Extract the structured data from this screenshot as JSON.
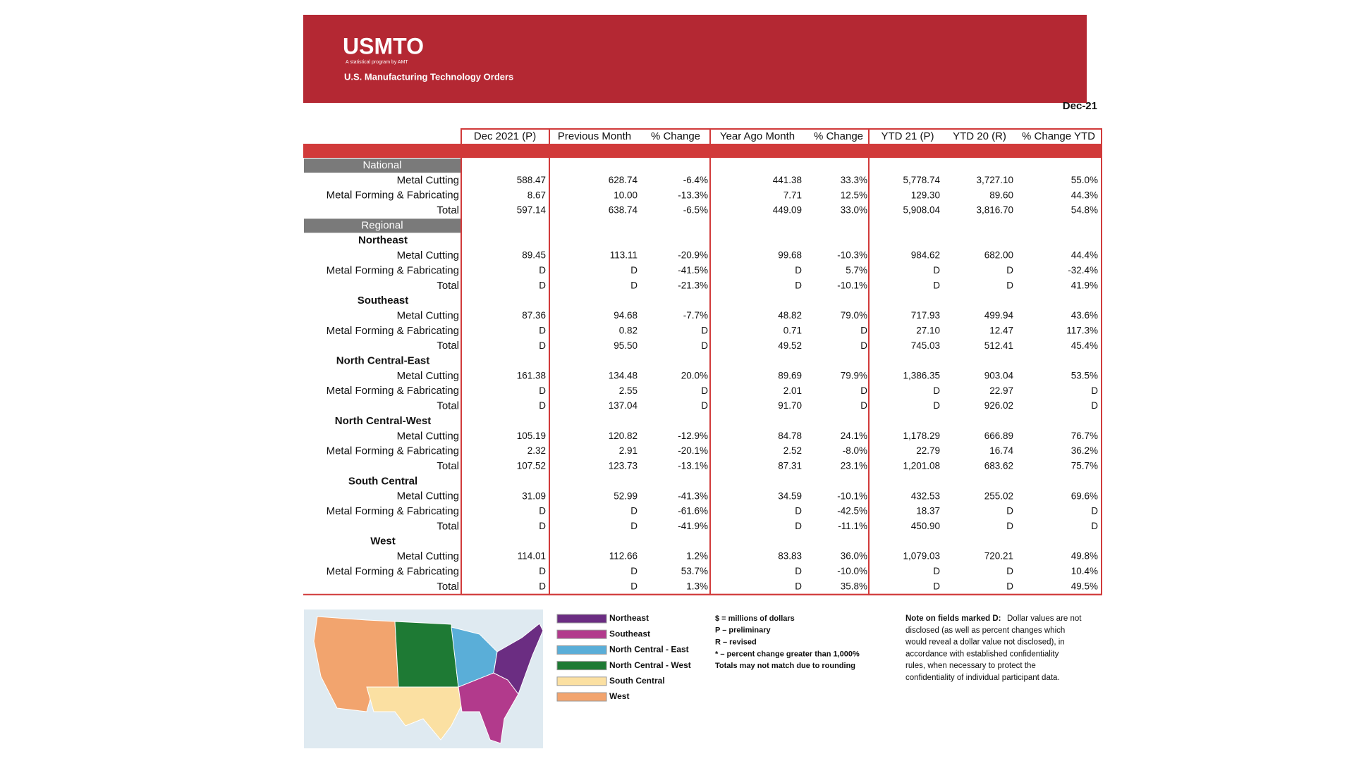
{
  "header": {
    "logo": "USMTO",
    "tagline": "A statistical program by AMT",
    "subtitle": "U.S. Manufacturing Technology Orders"
  },
  "date": "Dec-21",
  "table": {
    "columns": [
      "Dec 2021 (P)",
      "Previous Month",
      "% Change",
      "Year Ago Month",
      "% Change",
      "YTD 21 (P)",
      "YTD 20 (R)",
      "% Change YTD"
    ],
    "national": {
      "label": "National",
      "rows": [
        {
          "label": "Metal Cutting",
          "values": [
            "588.47",
            "628.74",
            "-6.4%",
            "441.38",
            "33.3%",
            "5,778.74",
            "3,727.10",
            "55.0%"
          ]
        },
        {
          "label": "Metal Forming & Fabricating",
          "values": [
            "8.67",
            "10.00",
            "-13.3%",
            "7.71",
            "12.5%",
            "129.30",
            "89.60",
            "44.3%"
          ]
        },
        {
          "label": "Total",
          "values": [
            "597.14",
            "638.74",
            "-6.5%",
            "449.09",
            "33.0%",
            "5,908.04",
            "3,816.70",
            "54.8%"
          ]
        }
      ]
    },
    "regional": {
      "label": "Regional",
      "regions": [
        {
          "name": "Northeast",
          "rows": [
            {
              "label": "Metal Cutting",
              "values": [
                "89.45",
                "113.11",
                "-20.9%",
                "99.68",
                "-10.3%",
                "984.62",
                "682.00",
                "44.4%"
              ]
            },
            {
              "label": "Metal Forming & Fabricating",
              "values": [
                "D",
                "D",
                "-41.5%",
                "D",
                "5.7%",
                "D",
                "D",
                "-32.4%"
              ]
            },
            {
              "label": "Total",
              "values": [
                "D",
                "D",
                "-21.3%",
                "D",
                "-10.1%",
                "D",
                "D",
                "41.9%"
              ]
            }
          ]
        },
        {
          "name": "Southeast",
          "rows": [
            {
              "label": "Metal Cutting",
              "values": [
                "87.36",
                "94.68",
                "-7.7%",
                "48.82",
                "79.0%",
                "717.93",
                "499.94",
                "43.6%"
              ]
            },
            {
              "label": "Metal Forming & Fabricating",
              "values": [
                "D",
                "0.82",
                "D",
                "0.71",
                "D",
                "27.10",
                "12.47",
                "117.3%"
              ]
            },
            {
              "label": "Total",
              "values": [
                "D",
                "95.50",
                "D",
                "49.52",
                "D",
                "745.03",
                "512.41",
                "45.4%"
              ]
            }
          ]
        },
        {
          "name": "North Central-East",
          "rows": [
            {
              "label": "Metal Cutting",
              "values": [
                "161.38",
                "134.48",
                "20.0%",
                "89.69",
                "79.9%",
                "1,386.35",
                "903.04",
                "53.5%"
              ]
            },
            {
              "label": "Metal Forming & Fabricating",
              "values": [
                "D",
                "2.55",
                "D",
                "2.01",
                "D",
                "D",
                "22.97",
                "D"
              ]
            },
            {
              "label": "Total",
              "values": [
                "D",
                "137.04",
                "D",
                "91.70",
                "D",
                "D",
                "926.02",
                "D"
              ]
            }
          ]
        },
        {
          "name": "North Central-West",
          "rows": [
            {
              "label": "Metal Cutting",
              "values": [
                "105.19",
                "120.82",
                "-12.9%",
                "84.78",
                "24.1%",
                "1,178.29",
                "666.89",
                "76.7%"
              ]
            },
            {
              "label": "Metal Forming & Fabricating",
              "values": [
                "2.32",
                "2.91",
                "-20.1%",
                "2.52",
                "-8.0%",
                "22.79",
                "16.74",
                "36.2%"
              ]
            },
            {
              "label": "Total",
              "values": [
                "107.52",
                "123.73",
                "-13.1%",
                "87.31",
                "23.1%",
                "1,201.08",
                "683.62",
                "75.7%"
              ]
            }
          ]
        },
        {
          "name": "South Central",
          "rows": [
            {
              "label": "Metal Cutting",
              "values": [
                "31.09",
                "52.99",
                "-41.3%",
                "34.59",
                "-10.1%",
                "432.53",
                "255.02",
                "69.6%"
              ]
            },
            {
              "label": "Metal Forming & Fabricating",
              "values": [
                "D",
                "D",
                "-61.6%",
                "D",
                "-42.5%",
                "18.37",
                "D",
                "D"
              ]
            },
            {
              "label": "Total",
              "values": [
                "D",
                "D",
                "-41.9%",
                "D",
                "-11.1%",
                "450.90",
                "D",
                "D"
              ]
            }
          ]
        },
        {
          "name": "West",
          "rows": [
            {
              "label": "Metal Cutting",
              "values": [
                "114.01",
                "112.66",
                "1.2%",
                "83.83",
                "36.0%",
                "1,079.03",
                "720.21",
                "49.8%"
              ]
            },
            {
              "label": "Metal Forming & Fabricating",
              "values": [
                "D",
                "D",
                "53.7%",
                "D",
                "-10.0%",
                "D",
                "D",
                "10.4%"
              ]
            },
            {
              "label": "Total",
              "values": [
                "D",
                "D",
                "1.3%",
                "D",
                "35.8%",
                "D",
                "D",
                "49.5%"
              ]
            }
          ]
        }
      ]
    }
  },
  "legend": [
    {
      "label": "Northeast",
      "color": "#6b2d82"
    },
    {
      "label": "Southeast",
      "color": "#b23a8c"
    },
    {
      "label": "North Central - East",
      "color": "#5aaed8"
    },
    {
      "label": "North Central - West",
      "color": "#1e7a34"
    },
    {
      "label": "South Central",
      "color": "#fbe0a2"
    },
    {
      "label": "West",
      "color": "#f2a46e"
    }
  ],
  "notes": [
    "$ = millions of dollars",
    "P – preliminary",
    "R – revised",
    "* – percent change greater than 1,000%",
    "Totals may not match due to rounding"
  ],
  "disclosure": {
    "title": "Note on fields marked D:",
    "lines": [
      "Dollar values are not",
      "disclosed (as well as percent changes which",
      "would reveal a dollar value not disclosed), in",
      "accordance with established confidentiality",
      "rules, when necessary to protect the",
      "confidentiality of individual participant data."
    ]
  }
}
